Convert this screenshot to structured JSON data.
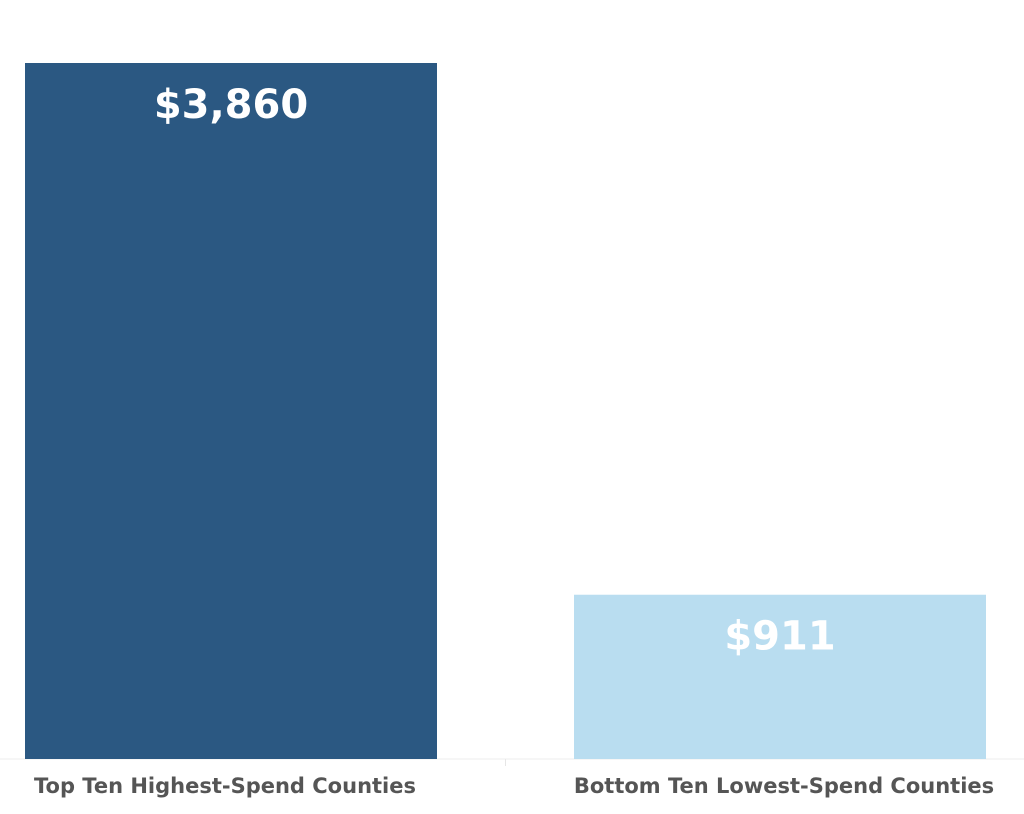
{
  "chart_data": {
    "type": "bar",
    "title": "",
    "xlabel": "",
    "ylabel": "",
    "categories": [
      "Top Ten Highest-Spend Counties",
      "Bottom Ten Lowest-Spend Counties"
    ],
    "values": [
      3860,
      911
    ],
    "value_labels": [
      "$3,860",
      "$911"
    ],
    "colors": [
      "#2b5882",
      "#b9ddf0"
    ],
    "ylim": [
      0,
      3860
    ],
    "grid": false,
    "legend": "none"
  }
}
